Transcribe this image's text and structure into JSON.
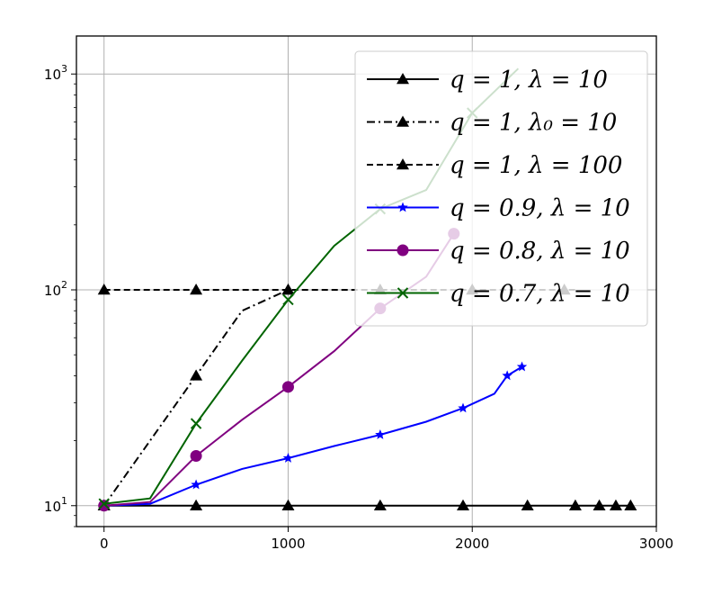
{
  "chart_data": {
    "type": "line",
    "title": "",
    "xlabel": "",
    "ylabel": "",
    "xlim": [
      -150,
      3000
    ],
    "ylim": [
      8,
      1500
    ],
    "yscale": "log",
    "grid": true,
    "legend_position": "top-right",
    "x_ticks": [
      {
        "value": 0,
        "label": "0"
      },
      {
        "value": 1000,
        "label": "1000"
      },
      {
        "value": 2000,
        "label": "2000"
      },
      {
        "value": 3000,
        "label": "3000"
      }
    ],
    "y_ticks": [
      {
        "value": 10,
        "base": "10",
        "exp": "1"
      },
      {
        "value": 100,
        "base": "10",
        "exp": "2"
      },
      {
        "value": 1000,
        "base": "10",
        "exp": "3"
      }
    ],
    "series": [
      {
        "name": "q = 1, λ = 10",
        "color": "#000000",
        "linestyle": "solid",
        "marker": "triangle",
        "x": [
          0,
          500,
          1000,
          1500,
          1950,
          2300,
          2560,
          2690,
          2780,
          2860
        ],
        "y": [
          10,
          10,
          10,
          10,
          10,
          10,
          10,
          10,
          10,
          10
        ],
        "marker_at": [
          0,
          500,
          1000,
          1500,
          1950,
          2300,
          2560,
          2690,
          2780,
          2860
        ]
      },
      {
        "name": "q = 1, λ₀ = 10",
        "color": "#000000",
        "linestyle": "dashdot",
        "marker": "triangle",
        "x": [
          0,
          250,
          500,
          750,
          1000
        ],
        "y": [
          10,
          20,
          40,
          80,
          100
        ],
        "marker_at": [
          0,
          500,
          1000
        ]
      },
      {
        "name": "q = 1, λ = 100",
        "color": "#000000",
        "linestyle": "dashed",
        "marker": "triangle",
        "x": [
          0,
          500,
          1000,
          1500,
          2000,
          2500,
          2560
        ],
        "y": [
          100,
          100,
          100,
          100,
          100,
          100,
          100
        ],
        "marker_at": [
          0,
          500,
          1000,
          1500,
          2000,
          2500
        ]
      },
      {
        "name": "q = 0.9, λ = 10",
        "color": "#0000ff",
        "linestyle": "solid",
        "marker": "star",
        "x": [
          0,
          250,
          500,
          750,
          1000,
          1250,
          1500,
          1750,
          1950,
          2120,
          2190,
          2270
        ],
        "y": [
          10,
          10.2,
          12.5,
          14.8,
          16.6,
          18.9,
          21.3,
          24.5,
          28.3,
          33,
          40,
          44
        ],
        "marker_at": [
          0,
          500,
          1000,
          1500,
          1950,
          2190,
          2270
        ]
      },
      {
        "name": "q = 0.8, λ = 10",
        "color": "#800080",
        "linestyle": "solid",
        "marker": "circle",
        "x": [
          0,
          250,
          500,
          750,
          1000,
          1250,
          1500,
          1750,
          1900
        ],
        "y": [
          10,
          10.4,
          17,
          25,
          35.5,
          52,
          82,
          115,
          182
        ],
        "marker_at": [
          0,
          500,
          1000,
          1500,
          1900
        ]
      },
      {
        "name": "q = 0.7, λ = 10",
        "color": "#006400",
        "linestyle": "solid",
        "marker": "x",
        "x": [
          0,
          250,
          500,
          750,
          1000,
          1250,
          1500,
          1750,
          2000,
          2250
        ],
        "y": [
          10.2,
          10.8,
          24,
          47,
          90,
          160,
          237,
          290,
          660,
          1060
        ],
        "marker_at": [
          0,
          500,
          1000,
          1500,
          2000
        ]
      }
    ]
  }
}
